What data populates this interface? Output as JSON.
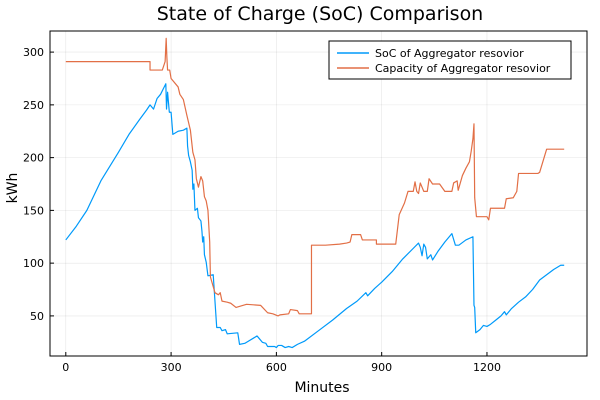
{
  "chart_data": {
    "type": "line",
    "title": "State of Charge (SoC) Comparison",
    "xlabel": "Minutes",
    "ylabel": "kWh",
    "xlim": [
      -45,
      1485
    ],
    "ylim": [
      12,
      320
    ],
    "xticks": [
      0,
      300,
      600,
      900,
      1200
    ],
    "yticks": [
      50,
      100,
      150,
      200,
      250,
      300
    ],
    "grid": true,
    "legend_position": "top-right",
    "colors": {
      "soc": "#009AFA",
      "capacity": "#E26F46"
    },
    "series": [
      {
        "name": "SoC of Aggregator resovior",
        "color": "#009AFA",
        "points": [
          [
            0,
            122
          ],
          [
            30,
            135
          ],
          [
            60,
            150
          ],
          [
            100,
            178
          ],
          [
            150,
            205
          ],
          [
            180,
            222
          ],
          [
            210,
            236
          ],
          [
            230,
            245
          ],
          [
            240,
            250
          ],
          [
            250,
            246
          ],
          [
            260,
            256
          ],
          [
            270,
            260
          ],
          [
            285,
            270
          ],
          [
            287,
            246
          ],
          [
            290,
            262
          ],
          [
            295,
            243
          ],
          [
            300,
            243
          ],
          [
            305,
            222
          ],
          [
            320,
            225
          ],
          [
            335,
            226
          ],
          [
            345,
            228
          ],
          [
            347,
            211
          ],
          [
            350,
            202
          ],
          [
            355,
            196
          ],
          [
            360,
            188
          ],
          [
            362,
            170
          ],
          [
            365,
            175
          ],
          [
            368,
            150
          ],
          [
            375,
            152
          ],
          [
            378,
            143
          ],
          [
            385,
            140
          ],
          [
            388,
            130
          ],
          [
            390,
            120
          ],
          [
            393,
            125
          ],
          [
            395,
            108
          ],
          [
            400,
            101
          ],
          [
            405,
            88
          ],
          [
            420,
            89
          ],
          [
            430,
            39
          ],
          [
            440,
            39
          ],
          [
            445,
            36
          ],
          [
            455,
            37
          ],
          [
            460,
            33
          ],
          [
            490,
            34
          ],
          [
            495,
            23
          ],
          [
            510,
            24
          ],
          [
            520,
            26
          ],
          [
            535,
            29
          ],
          [
            545,
            31
          ],
          [
            550,
            29
          ],
          [
            560,
            25
          ],
          [
            570,
            24
          ],
          [
            575,
            21
          ],
          [
            595,
            21
          ],
          [
            600,
            20
          ],
          [
            605,
            22
          ],
          [
            615,
            22
          ],
          [
            625,
            20
          ],
          [
            635,
            21
          ],
          [
            645,
            20
          ],
          [
            660,
            23
          ],
          [
            680,
            26
          ],
          [
            720,
            36
          ],
          [
            760,
            46
          ],
          [
            800,
            57
          ],
          [
            830,
            64
          ],
          [
            855,
            72
          ],
          [
            860,
            69
          ],
          [
            880,
            76
          ],
          [
            900,
            82
          ],
          [
            930,
            92
          ],
          [
            960,
            104
          ],
          [
            990,
            114
          ],
          [
            1005,
            119
          ],
          [
            1010,
            115
          ],
          [
            1015,
            107
          ],
          [
            1020,
            118
          ],
          [
            1025,
            115
          ],
          [
            1030,
            104
          ],
          [
            1040,
            108
          ],
          [
            1045,
            103
          ],
          [
            1060,
            111
          ],
          [
            1080,
            120
          ],
          [
            1100,
            128
          ],
          [
            1110,
            117
          ],
          [
            1120,
            117
          ],
          [
            1140,
            122
          ],
          [
            1160,
            125
          ],
          [
            1163,
            60
          ],
          [
            1165,
            58
          ],
          [
            1168,
            34
          ],
          [
            1180,
            37
          ],
          [
            1190,
            41
          ],
          [
            1200,
            40
          ],
          [
            1210,
            42
          ],
          [
            1225,
            46
          ],
          [
            1240,
            50
          ],
          [
            1250,
            54
          ],
          [
            1255,
            51
          ],
          [
            1270,
            57
          ],
          [
            1290,
            63
          ],
          [
            1310,
            68
          ],
          [
            1330,
            75
          ],
          [
            1350,
            84
          ],
          [
            1370,
            89
          ],
          [
            1390,
            94
          ],
          [
            1410,
            98
          ],
          [
            1420,
            98
          ]
        ]
      },
      {
        "name": "Capacity of Aggregator resovior",
        "color": "#E26F46",
        "points": [
          [
            0,
            291
          ],
          [
            240,
            291
          ],
          [
            240,
            283
          ],
          [
            275,
            283
          ],
          [
            283,
            291
          ],
          [
            286,
            313
          ],
          [
            288,
            295
          ],
          [
            290,
            283
          ],
          [
            296,
            283
          ],
          [
            300,
            275
          ],
          [
            320,
            267
          ],
          [
            325,
            260
          ],
          [
            335,
            255
          ],
          [
            345,
            240
          ],
          [
            355,
            226
          ],
          [
            362,
            205
          ],
          [
            368,
            198
          ],
          [
            372,
            180
          ],
          [
            378,
            172
          ],
          [
            385,
            182
          ],
          [
            390,
            178
          ],
          [
            395,
            163
          ],
          [
            400,
            159
          ],
          [
            405,
            150
          ],
          [
            410,
            120
          ],
          [
            412,
            87
          ],
          [
            425,
            72
          ],
          [
            435,
            70
          ],
          [
            440,
            72
          ],
          [
            445,
            64
          ],
          [
            460,
            63
          ],
          [
            470,
            62
          ],
          [
            485,
            58
          ],
          [
            515,
            61
          ],
          [
            555,
            60
          ],
          [
            575,
            53
          ],
          [
            590,
            52
          ],
          [
            605,
            50
          ],
          [
            610,
            51
          ],
          [
            635,
            52
          ],
          [
            640,
            56
          ],
          [
            660,
            55
          ],
          [
            665,
            52
          ],
          [
            700,
            52
          ],
          [
            700,
            117
          ],
          [
            740,
            117
          ],
          [
            780,
            118
          ],
          [
            800,
            119
          ],
          [
            810,
            120
          ],
          [
            815,
            127
          ],
          [
            840,
            127
          ],
          [
            845,
            122
          ],
          [
            885,
            122
          ],
          [
            885,
            118
          ],
          [
            940,
            118
          ],
          [
            950,
            146
          ],
          [
            965,
            157
          ],
          [
            975,
            168
          ],
          [
            990,
            168
          ],
          [
            995,
            177
          ],
          [
            1000,
            168
          ],
          [
            1005,
            166
          ],
          [
            1010,
            176
          ],
          [
            1020,
            168
          ],
          [
            1030,
            168
          ],
          [
            1035,
            180
          ],
          [
            1045,
            175
          ],
          [
            1065,
            175
          ],
          [
            1080,
            168
          ],
          [
            1100,
            168
          ],
          [
            1105,
            176
          ],
          [
            1115,
            178
          ],
          [
            1118,
            169
          ],
          [
            1130,
            183
          ],
          [
            1140,
            190
          ],
          [
            1150,
            196
          ],
          [
            1155,
            206
          ],
          [
            1160,
            218
          ],
          [
            1163,
            232
          ],
          [
            1165,
            162
          ],
          [
            1170,
            144
          ],
          [
            1200,
            144
          ],
          [
            1205,
            141
          ],
          [
            1210,
            152
          ],
          [
            1250,
            152
          ],
          [
            1255,
            161
          ],
          [
            1275,
            162
          ],
          [
            1285,
            168
          ],
          [
            1290,
            185
          ],
          [
            1345,
            185
          ],
          [
            1350,
            186
          ],
          [
            1370,
            208
          ],
          [
            1420,
            208
          ]
        ]
      }
    ]
  }
}
